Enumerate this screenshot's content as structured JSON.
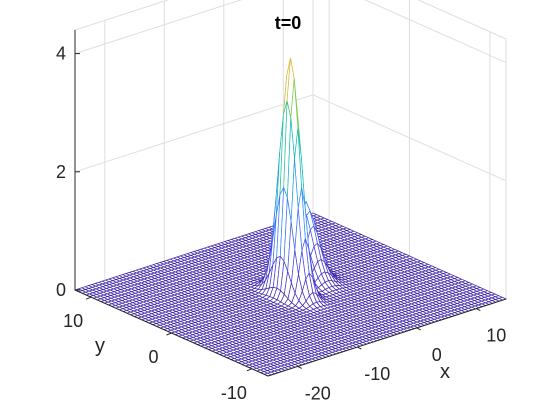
{
  "chart_data": {
    "type": "surface",
    "title": "t=0",
    "xlabel": "x",
    "ylabel": "y",
    "zlabel": "",
    "xlim": [
      -25,
      15
    ],
    "ylim": [
      -12,
      12
    ],
    "zlim": [
      0,
      4.4
    ],
    "x_ticks": [
      -20,
      -10,
      0,
      10
    ],
    "y_ticks": [
      -10,
      0,
      10
    ],
    "z_ticks": [
      0,
      2,
      4
    ],
    "x_tick_labels": [
      "-20",
      "-10",
      "0",
      "10"
    ],
    "y_tick_labels": [
      "-10",
      "0",
      "10"
    ],
    "z_tick_labels": [
      "0",
      "2",
      "4"
    ],
    "grid": true,
    "colormap": "parula",
    "surface": {
      "components": [
        {
          "x0": -5,
          "y0": 0,
          "amplitude": 4.0,
          "width_x": 1.3,
          "width_y": 1.6
        },
        {
          "x0": 0,
          "y0": 2,
          "amplitude": 1.3,
          "width_x": 1.8,
          "width_y": 1.9
        }
      ]
    }
  }
}
